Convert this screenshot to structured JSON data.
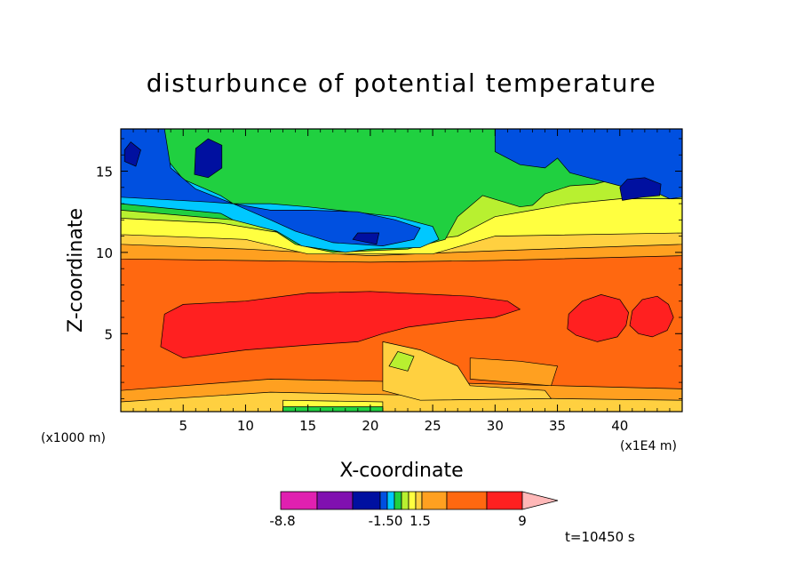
{
  "chart_data": {
    "type": "heatmap",
    "title": "disturbunce of potential temperature",
    "xlabel": "X-coordinate",
    "ylabel": "Z-coordinate",
    "x_unit": "(x1E4 m)",
    "y_unit": "(x1000 m)",
    "xlim": [
      0,
      45
    ],
    "ylim": [
      0.2,
      17.6
    ],
    "x_ticks": [
      5,
      10,
      15,
      20,
      25,
      30,
      35,
      40
    ],
    "y_ticks": [
      5,
      10,
      15
    ],
    "time_label": "t=10450 s",
    "colorbar": {
      "labels": [
        {
          "text": "-8.8",
          "value": -8.8
        },
        {
          "text": "-1.50",
          "value": -1.5
        },
        {
          "text": "1.5",
          "value": 1.5
        },
        {
          "text": "9",
          "value": 9
        }
      ],
      "levels": [
        -12,
        -8.8,
        -5.5,
        -2.5,
        -1.5,
        -1.0,
        -0.5,
        0,
        0.5,
        1.0,
        1.5,
        5,
        7,
        9,
        12
      ],
      "colors": [
        "#e020b0",
        "#8010b0",
        "#0010a0",
        "#0050e0",
        "#00c8ff",
        "#20d040",
        "#b8f030",
        "#ffff40",
        "#ffd040",
        "#ffa020",
        "#ff6810",
        "#ff2020",
        "#ff8080",
        "#ffb8b8"
      ]
    },
    "regions": [
      {
        "level": 10,
        "polygons": [
          [
            [
              0,
              0.2
            ],
            [
              45,
              0.2
            ],
            [
              45,
              11.6
            ],
            [
              0,
              11.6
            ]
          ]
        ]
      },
      {
        "level": 11,
        "polygons": [
          [
            [
              3.2,
              4.2
            ],
            [
              5,
              3.5
            ],
            [
              10,
              4.0
            ],
            [
              15,
              4.3
            ],
            [
              19,
              4.5
            ],
            [
              21,
              5
            ],
            [
              23,
              5.4
            ],
            [
              27,
              5.8
            ],
            [
              30,
              6.0
            ],
            [
              32,
              6.5
            ],
            [
              31,
              7.0
            ],
            [
              28,
              7.3
            ],
            [
              20,
              7.6
            ],
            [
              15,
              7.5
            ],
            [
              10,
              7.0
            ],
            [
              5,
              6.8
            ],
            [
              3.5,
              6.2
            ]
          ],
          [
            [
              35.8,
              5.3
            ],
            [
              36.5,
              4.9
            ],
            [
              38.2,
              4.5
            ],
            [
              39.8,
              4.8
            ],
            [
              40.5,
              5.5
            ],
            [
              40.7,
              6.3
            ],
            [
              40,
              7.1
            ],
            [
              38.5,
              7.4
            ],
            [
              37,
              7.0
            ],
            [
              35.9,
              6.2
            ]
          ],
          [
            [
              40.8,
              5.5
            ],
            [
              41.5,
              5
            ],
            [
              42.6,
              4.8
            ],
            [
              43.8,
              5.2
            ],
            [
              44.3,
              6
            ],
            [
              43.9,
              6.8
            ],
            [
              43,
              7.3
            ],
            [
              41.8,
              7.1
            ],
            [
              41,
              6.4
            ]
          ]
        ]
      },
      {
        "level": 9,
        "polygons": [
          [
            [
              0,
              9.6
            ],
            [
              10,
              9.5
            ],
            [
              20,
              9.4
            ],
            [
              30,
              9.5
            ],
            [
              45,
              9.8
            ],
            [
              45,
              12.2
            ],
            [
              38,
              12.3
            ],
            [
              30,
              12
            ],
            [
              22,
              12
            ],
            [
              15,
              12
            ],
            [
              8,
              12.3
            ],
            [
              0,
              12.5
            ]
          ],
          [
            [
              0,
              0.2
            ],
            [
              45,
              0.2
            ],
            [
              45,
              1.6
            ],
            [
              35,
              1.8
            ],
            [
              25,
              2.0
            ],
            [
              12,
              2.2
            ],
            [
              0,
              1.5
            ]
          ],
          [
            [
              28,
              2.2
            ],
            [
              34.5,
              1.8
            ],
            [
              35,
              3.0
            ],
            [
              32,
              3.3
            ],
            [
              28,
              3.5
            ]
          ]
        ]
      },
      {
        "level": 8,
        "polygons": [
          [
            [
              0,
              10.5
            ],
            [
              10,
              10.2
            ],
            [
              20,
              9.8
            ],
            [
              30,
              10.1
            ],
            [
              45,
              10.5
            ],
            [
              45,
              13
            ],
            [
              38,
              13.4
            ],
            [
              30,
              12.8
            ],
            [
              22,
              12.6
            ],
            [
              15,
              12.4
            ],
            [
              8,
              12.8
            ],
            [
              0,
              13
            ]
          ],
          [
            [
              0,
              0.2
            ],
            [
              45,
              0.2
            ],
            [
              45,
              0.9
            ],
            [
              35,
              1.0
            ],
            [
              24,
              1.2
            ],
            [
              12,
              1.4
            ],
            [
              0,
              0.8
            ]
          ],
          [
            [
              21,
              4.5
            ],
            [
              24,
              4.0
            ],
            [
              27,
              3.0
            ],
            [
              28,
              1.8
            ],
            [
              34,
              1.5
            ],
            [
              34.5,
              1.0
            ],
            [
              24,
              0.9
            ],
            [
              21,
              1.5
            ]
          ]
        ]
      },
      {
        "level": 7,
        "polygons": [
          [
            [
              0,
              11.1
            ],
            [
              10,
              10.8
            ],
            [
              15,
              9.9
            ],
            [
              25,
              9.9
            ],
            [
              30,
              11.0
            ],
            [
              45,
              11.2
            ],
            [
              45,
              14.2
            ],
            [
              40,
              14.0
            ],
            [
              35,
              13.2
            ],
            [
              30,
              13.0
            ],
            [
              25,
              13.0
            ],
            [
              22,
              12.8
            ],
            [
              15,
              13
            ],
            [
              10,
              12.9
            ],
            [
              5,
              13.4
            ],
            [
              0,
              13.3
            ]
          ],
          [
            [
              13,
              0.2
            ],
            [
              21,
              0.2
            ],
            [
              21,
              0.8
            ],
            [
              13,
              0.9
            ]
          ]
        ]
      },
      {
        "level": 6,
        "polygons": [
          [
            [
              0,
              12.1
            ],
            [
              8,
              11.8
            ],
            [
              12,
              11.3
            ],
            [
              15,
              11.0
            ],
            [
              23,
              10.6
            ],
            [
              27,
              11.0
            ],
            [
              30,
              12.2
            ],
            [
              33,
              12.6
            ],
            [
              36,
              13.0
            ],
            [
              40,
              13.3
            ],
            [
              45,
              13.3
            ],
            [
              45,
              14.7
            ],
            [
              40,
              15.2
            ],
            [
              35,
              14.8
            ],
            [
              30,
              14.0
            ],
            [
              26,
              13.8
            ],
            [
              20,
              13.6
            ],
            [
              14,
              13.8
            ],
            [
              10,
              13.4
            ],
            [
              5,
              14.6
            ],
            [
              0,
              14.5
            ]
          ],
          [
            [
              21.5,
              3.0
            ],
            [
              23,
              2.7
            ],
            [
              23.5,
              3.6
            ],
            [
              22.2,
              3.9
            ]
          ]
        ]
      },
      {
        "level": 5,
        "polygons": [
          [
            [
              0,
              12.6
            ],
            [
              9,
              12.0
            ],
            [
              12,
              11.5
            ],
            [
              14,
              10.5
            ],
            [
              17,
              10.0
            ],
            [
              23,
              10.2
            ],
            [
              26,
              10.8
            ],
            [
              27,
              12.2
            ],
            [
              29,
              13.5
            ],
            [
              32,
              12.8
            ],
            [
              33,
              12.9
            ],
            [
              34,
              13.6
            ],
            [
              36,
              14.1
            ],
            [
              38,
              14.2
            ],
            [
              40,
              14.6
            ],
            [
              42,
              15.0
            ],
            [
              45,
              15.0
            ],
            [
              45,
              17.6
            ],
            [
              0,
              17.6
            ]
          ],
          [
            [
              13,
              0.2
            ],
            [
              21,
              0.2
            ],
            [
              21,
              0.5
            ],
            [
              13,
              0.5
            ]
          ]
        ]
      },
      {
        "level": 4,
        "polygons": [
          [
            [
              0,
              13
            ],
            [
              8,
              12.4
            ],
            [
              9,
              12.0
            ],
            [
              12.5,
              11.3
            ],
            [
              14.5,
              10.4
            ],
            [
              18,
              10.0
            ],
            [
              20,
              10.2
            ],
            [
              24,
              10.3
            ],
            [
              25.5,
              10.8
            ],
            [
              25,
              11.6
            ],
            [
              22,
              12.2
            ],
            [
              15,
              12.8
            ],
            [
              12,
              13.0
            ],
            [
              9,
              13.0
            ],
            [
              8,
              13.5
            ],
            [
              5,
              14.5
            ],
            [
              3,
              16.4
            ],
            [
              0,
              16.4
            ]
          ]
        ]
      },
      {
        "level": 3,
        "polygons": [
          [
            [
              0,
              13.4
            ],
            [
              7,
              13.1
            ],
            [
              9,
              13.0
            ],
            [
              12,
              12.0
            ],
            [
              14,
              11.3
            ],
            [
              17,
              10.6
            ],
            [
              21,
              10.4
            ],
            [
              23.5,
              10.8
            ],
            [
              24,
              11.5
            ],
            [
              22,
              12.0
            ],
            [
              19,
              12.5
            ],
            [
              15,
              12.6
            ],
            [
              12,
              12.6
            ],
            [
              9,
              13.0
            ],
            [
              6,
              13.9
            ],
            [
              4,
              15.2
            ],
            [
              3.5,
              17.6
            ],
            [
              0,
              17.6
            ]
          ],
          [
            [
              30,
              16.2
            ],
            [
              32,
              15.4
            ],
            [
              34,
              15.2
            ],
            [
              35,
              15.8
            ],
            [
              36,
              14.9
            ],
            [
              38,
              14.5
            ],
            [
              40,
              14.1
            ],
            [
              42,
              14.0
            ],
            [
              44,
              13.3
            ],
            [
              45,
              13.4
            ],
            [
              45,
              17.6
            ],
            [
              30,
              17.6
            ]
          ]
        ]
      },
      {
        "level": 2,
        "polygons": [
          [
            [
              0.3,
              15.6
            ],
            [
              1.2,
              15.3
            ],
            [
              1.6,
              16.3
            ],
            [
              0.8,
              16.8
            ],
            [
              0.3,
              16.3
            ]
          ],
          [
            [
              5.9,
              14.8
            ],
            [
              7,
              14.6
            ],
            [
              8.1,
              15.2
            ],
            [
              8.1,
              16.6
            ],
            [
              7,
              17.0
            ],
            [
              6,
              16.4
            ]
          ],
          [
            [
              18.6,
              10.8
            ],
            [
              20.5,
              10.5
            ],
            [
              20.7,
              11.2
            ],
            [
              19,
              11.2
            ]
          ],
          [
            [
              40.2,
              13.2
            ],
            [
              41.8,
              13.4
            ],
            [
              43.2,
              13.5
            ],
            [
              43.3,
              14.2
            ],
            [
              42,
              14.6
            ],
            [
              40.6,
              14.5
            ],
            [
              40,
              14.0
            ]
          ]
        ]
      }
    ]
  }
}
